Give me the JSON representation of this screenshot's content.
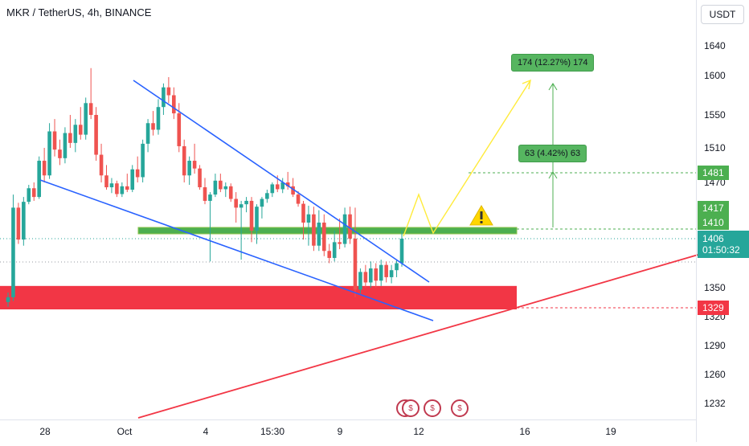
{
  "header": {
    "title": "MKR / TetherUS, 4h, BINANCE",
    "currency": "USDT"
  },
  "axes": {
    "y_ticks": [
      "1640",
      "1600",
      "1550",
      "1510",
      "1470",
      "1350",
      "1320",
      "1290",
      "1260",
      "1232"
    ],
    "x_ticks": [
      "28",
      "Oct",
      "4",
      "15:30",
      "9",
      "12",
      "16",
      "19"
    ]
  },
  "price_tags": {
    "target": "1481",
    "upper_a": "1417",
    "upper_b": "1410",
    "current": "1406",
    "countdown": "01:50:32",
    "support": "1329"
  },
  "annotations": {
    "big_target": "174 (12.27%) 174",
    "small_target": "63 (4.42%) 63"
  },
  "colors": {
    "bull": "#26a69a",
    "bear": "#ef5350",
    "trendline": "#2962ff",
    "resistance_zone": "#4caf50",
    "support_zone": "#f23645",
    "projection": "#ffeb3b",
    "rising_line": "#f23645"
  },
  "chart_data": {
    "type": "candlestick",
    "symbol": "MKR / TetherUS",
    "interval": "4h",
    "exchange": "BINANCE",
    "ylim": [
      1210,
      1670
    ],
    "current_price": 1406,
    "levels": {
      "target": 1481,
      "resistance_zone": [
        1410,
        1417
      ],
      "support_zone": [
        1329,
        1352
      ],
      "support_label": 1329
    },
    "measurements": [
      {
        "label": "174 (12.27%) 174",
        "from": 1417,
        "to": 1590
      },
      {
        "label": "63 (4.42%) 63",
        "from": 1417,
        "to": 1481
      }
    ],
    "candles": [
      {
        "o": 1335,
        "h": 1345,
        "l": 1330,
        "c": 1340
      },
      {
        "o": 1340,
        "h": 1445,
        "l": 1336,
        "c": 1418
      },
      {
        "o": 1418,
        "h": 1428,
        "l": 1400,
        "c": 1405
      },
      {
        "o": 1405,
        "h": 1440,
        "l": 1398,
        "c": 1430
      },
      {
        "o": 1430,
        "h": 1465,
        "l": 1425,
        "c": 1458
      },
      {
        "o": 1458,
        "h": 1470,
        "l": 1432,
        "c": 1440
      },
      {
        "o": 1440,
        "h": 1500,
        "l": 1436,
        "c": 1495
      },
      {
        "o": 1495,
        "h": 1510,
        "l": 1470,
        "c": 1478
      },
      {
        "o": 1478,
        "h": 1540,
        "l": 1474,
        "c": 1530
      },
      {
        "o": 1530,
        "h": 1545,
        "l": 1500,
        "c": 1508
      },
      {
        "o": 1508,
        "h": 1520,
        "l": 1490,
        "c": 1498
      },
      {
        "o": 1498,
        "h": 1535,
        "l": 1492,
        "c": 1528
      },
      {
        "o": 1528,
        "h": 1550,
        "l": 1510,
        "c": 1516
      },
      {
        "o": 1516,
        "h": 1545,
        "l": 1505,
        "c": 1538
      },
      {
        "o": 1538,
        "h": 1560,
        "l": 1520,
        "c": 1526
      },
      {
        "o": 1526,
        "h": 1572,
        "l": 1520,
        "c": 1565
      },
      {
        "o": 1565,
        "h": 1610,
        "l": 1545,
        "c": 1550
      },
      {
        "o": 1550,
        "h": 1560,
        "l": 1495,
        "c": 1502
      },
      {
        "o": 1502,
        "h": 1515,
        "l": 1470,
        "c": 1478
      },
      {
        "o": 1478,
        "h": 1490,
        "l": 1455,
        "c": 1460
      },
      {
        "o": 1460,
        "h": 1475,
        "l": 1448,
        "c": 1468
      },
      {
        "o": 1468,
        "h": 1472,
        "l": 1440,
        "c": 1446
      },
      {
        "o": 1446,
        "h": 1470,
        "l": 1440,
        "c": 1462
      },
      {
        "o": 1462,
        "h": 1480,
        "l": 1450,
        "c": 1455
      },
      {
        "o": 1455,
        "h": 1490,
        "l": 1450,
        "c": 1485
      },
      {
        "o": 1485,
        "h": 1500,
        "l": 1470,
        "c": 1476
      },
      {
        "o": 1476,
        "h": 1520,
        "l": 1470,
        "c": 1515
      },
      {
        "o": 1515,
        "h": 1545,
        "l": 1505,
        "c": 1540
      },
      {
        "o": 1540,
        "h": 1555,
        "l": 1525,
        "c": 1532
      },
      {
        "o": 1532,
        "h": 1570,
        "l": 1526,
        "c": 1560
      },
      {
        "o": 1560,
        "h": 1590,
        "l": 1550,
        "c": 1585
      },
      {
        "o": 1585,
        "h": 1598,
        "l": 1565,
        "c": 1575
      },
      {
        "o": 1575,
        "h": 1585,
        "l": 1545,
        "c": 1552
      },
      {
        "o": 1552,
        "h": 1565,
        "l": 1505,
        "c": 1512
      },
      {
        "o": 1512,
        "h": 1520,
        "l": 1470,
        "c": 1478
      },
      {
        "o": 1478,
        "h": 1500,
        "l": 1465,
        "c": 1495
      },
      {
        "o": 1495,
        "h": 1515,
        "l": 1480,
        "c": 1486
      },
      {
        "o": 1486,
        "h": 1490,
        "l": 1455,
        "c": 1460
      },
      {
        "o": 1460,
        "h": 1475,
        "l": 1425,
        "c": 1432
      },
      {
        "o": 1432,
        "h": 1450,
        "l": 1380,
        "c": 1445
      },
      {
        "o": 1445,
        "h": 1480,
        "l": 1440,
        "c": 1472
      },
      {
        "o": 1472,
        "h": 1480,
        "l": 1450,
        "c": 1456
      },
      {
        "o": 1456,
        "h": 1470,
        "l": 1440,
        "c": 1462
      },
      {
        "o": 1462,
        "h": 1468,
        "l": 1430,
        "c": 1436
      },
      {
        "o": 1436,
        "h": 1450,
        "l": 1410,
        "c": 1418
      },
      {
        "o": 1418,
        "h": 1432,
        "l": 1382,
        "c": 1425
      },
      {
        "o": 1425,
        "h": 1440,
        "l": 1415,
        "c": 1432
      },
      {
        "o": 1432,
        "h": 1440,
        "l": 1402,
        "c": 1408
      },
      {
        "o": 1408,
        "h": 1425,
        "l": 1400,
        "c": 1420
      },
      {
        "o": 1420,
        "h": 1440,
        "l": 1412,
        "c": 1436
      },
      {
        "o": 1436,
        "h": 1455,
        "l": 1428,
        "c": 1448
      },
      {
        "o": 1448,
        "h": 1470,
        "l": 1440,
        "c": 1466
      },
      {
        "o": 1466,
        "h": 1478,
        "l": 1450,
        "c": 1456
      },
      {
        "o": 1456,
        "h": 1475,
        "l": 1448,
        "c": 1470
      },
      {
        "o": 1470,
        "h": 1482,
        "l": 1455,
        "c": 1462
      },
      {
        "o": 1462,
        "h": 1475,
        "l": 1440,
        "c": 1445
      },
      {
        "o": 1445,
        "h": 1452,
        "l": 1420,
        "c": 1426
      },
      {
        "o": 1426,
        "h": 1432,
        "l": 1405,
        "c": 1410
      },
      {
        "o": 1410,
        "h": 1422,
        "l": 1398,
        "c": 1414
      },
      {
        "o": 1414,
        "h": 1420,
        "l": 1392,
        "c": 1398
      },
      {
        "o": 1398,
        "h": 1416,
        "l": 1392,
        "c": 1410
      },
      {
        "o": 1410,
        "h": 1414,
        "l": 1386,
        "c": 1392
      },
      {
        "o": 1392,
        "h": 1400,
        "l": 1378,
        "c": 1384
      },
      {
        "o": 1384,
        "h": 1408,
        "l": 1380,
        "c": 1402
      },
      {
        "o": 1402,
        "h": 1412,
        "l": 1394,
        "c": 1400
      },
      {
        "o": 1400,
        "h": 1418,
        "l": 1396,
        "c": 1414
      },
      {
        "o": 1414,
        "h": 1420,
        "l": 1400,
        "c": 1406
      },
      {
        "o": 1406,
        "h": 1418,
        "l": 1340,
        "c": 1348
      },
      {
        "o": 1348,
        "h": 1372,
        "l": 1344,
        "c": 1368
      },
      {
        "o": 1368,
        "h": 1376,
        "l": 1350,
        "c": 1356
      },
      {
        "o": 1356,
        "h": 1380,
        "l": 1350,
        "c": 1372
      },
      {
        "o": 1372,
        "h": 1378,
        "l": 1350,
        "c": 1358
      },
      {
        "o": 1358,
        "h": 1382,
        "l": 1352,
        "c": 1376
      },
      {
        "o": 1376,
        "h": 1380,
        "l": 1356,
        "c": 1362
      },
      {
        "o": 1362,
        "h": 1376,
        "l": 1355,
        "c": 1370
      },
      {
        "o": 1370,
        "h": 1382,
        "l": 1362,
        "c": 1378
      },
      {
        "o": 1378,
        "h": 1408,
        "l": 1374,
        "c": 1406
      }
    ]
  }
}
